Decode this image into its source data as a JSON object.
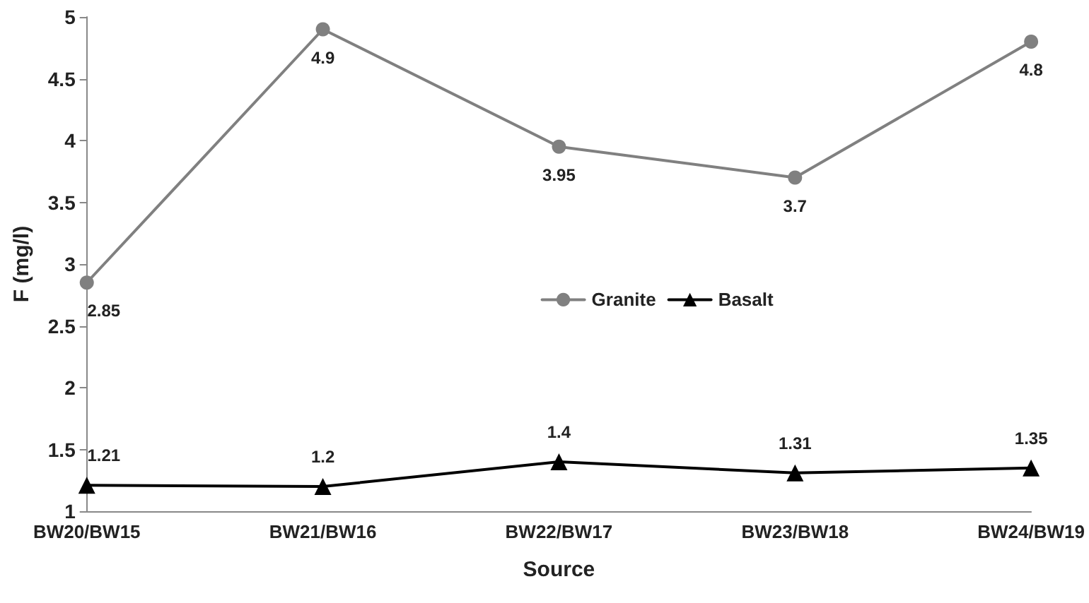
{
  "chart_data": {
    "type": "line",
    "xlabel": "Source",
    "ylabel": "F (mg/l)",
    "categories": [
      "BW20/BW15",
      "BW21/BW16",
      "BW22/BW17",
      "BW23/BW18",
      "BW24/BW19"
    ],
    "series": [
      {
        "name": "Granite",
        "color": "#808080",
        "marker": "circle",
        "values": [
          2.85,
          4.9,
          3.95,
          3.7,
          4.8
        ]
      },
      {
        "name": "Basalt",
        "color": "#000000",
        "marker": "triangle",
        "values": [
          1.21,
          1.2,
          1.4,
          1.31,
          1.35
        ]
      }
    ],
    "ylim": [
      1,
      5
    ],
    "yticks": [
      1,
      1.5,
      2,
      2.5,
      3,
      3.5,
      4,
      4.5,
      5
    ],
    "grid": false,
    "legend": "center",
    "data_labels": true,
    "line_style": "solid"
  }
}
